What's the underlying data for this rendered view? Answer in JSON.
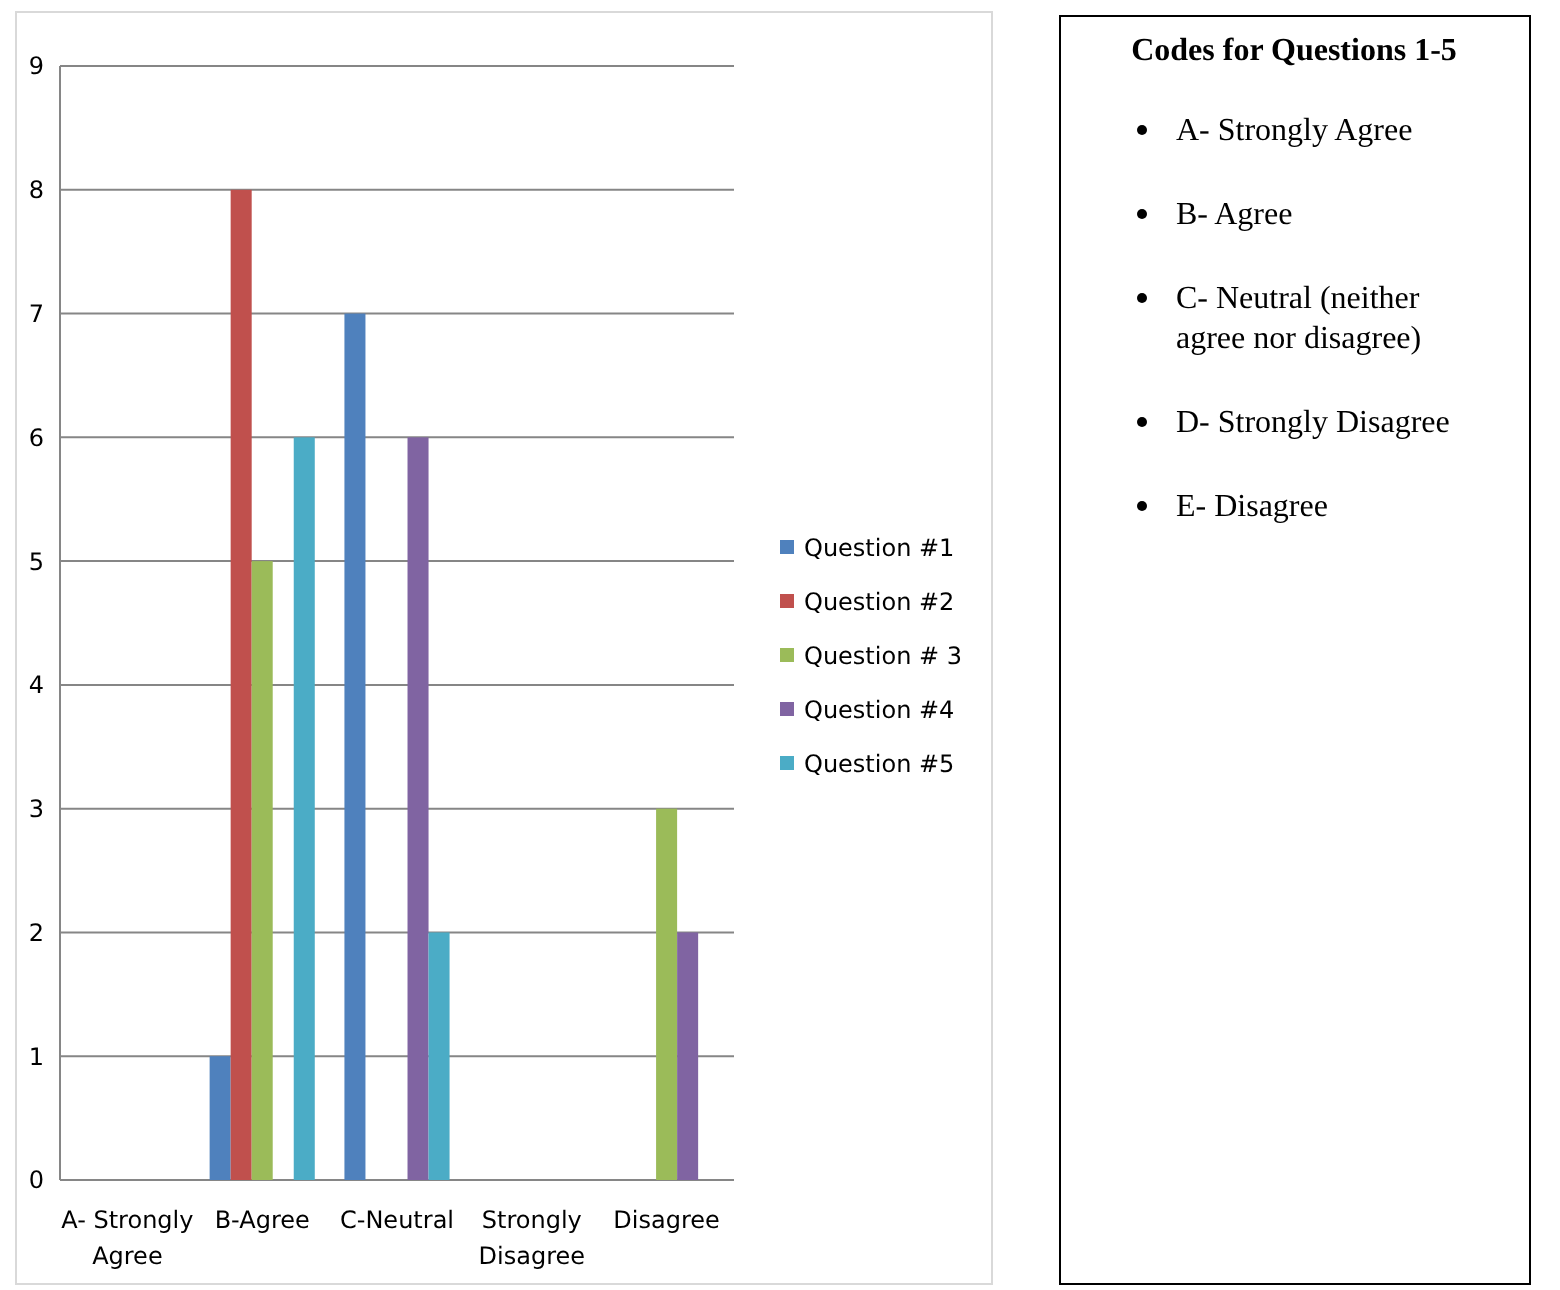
{
  "chart_data": {
    "type": "bar",
    "categories": [
      "A- Strongly Agree",
      "B-Agree",
      "C-Neutral",
      "Strongly Disagree",
      "Disagree"
    ],
    "series": [
      {
        "name": "Question #1",
        "color": "#4f81bd",
        "values": [
          0,
          1,
          7,
          0,
          0
        ]
      },
      {
        "name": "Question #2",
        "color": "#c0504d",
        "values": [
          0,
          8,
          0,
          0,
          0
        ]
      },
      {
        "name": "Question # 3",
        "color": "#9bbb59",
        "values": [
          0,
          5,
          0,
          0,
          3
        ]
      },
      {
        "name": "Question #4",
        "color": "#8064a2",
        "values": [
          0,
          0,
          6,
          0,
          2
        ]
      },
      {
        "name": "Question #5",
        "color": "#4bacc6",
        "values": [
          0,
          6,
          2,
          0,
          0
        ]
      }
    ],
    "ylim": [
      0,
      9
    ],
    "yticks": [
      0,
      1,
      2,
      3,
      4,
      5,
      6,
      7,
      8,
      9
    ],
    "grid": "y",
    "legend": "right",
    "annotations": [
      "Codes for Questions 1-5",
      "A- Strongly Agree",
      "B- Agree",
      "C- Neutral (neither agree nor disagree)",
      "D- Strongly Disagree",
      "E- Disagree"
    ]
  }
}
